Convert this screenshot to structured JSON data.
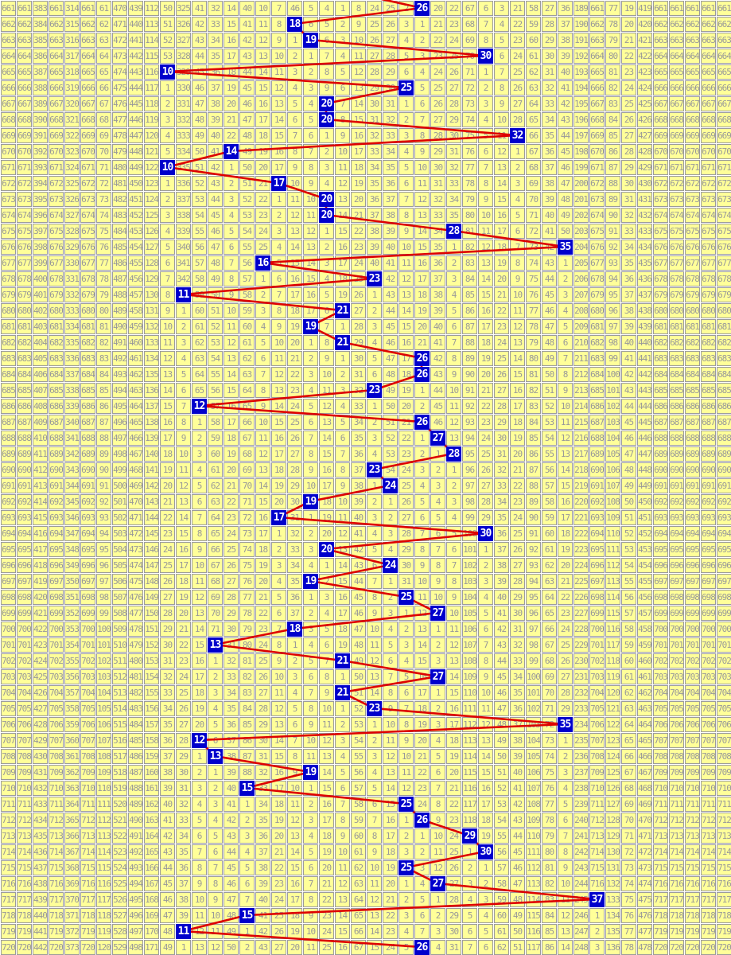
{
  "chart_data": {
    "type": "table",
    "subtype": "lottery-number-omission-trend-grid",
    "title": "",
    "columns": {
      "first_column": "issue-number",
      "number_columns_from": 1,
      "number_columns_to": 45
    },
    "issues": [
      661,
      662,
      663,
      664,
      665,
      666,
      667,
      668,
      669,
      670,
      671,
      672,
      673,
      674,
      675,
      676,
      677,
      678,
      679,
      680,
      681,
      682,
      683,
      684,
      685,
      686,
      687,
      688,
      689,
      690,
      691,
      692,
      693,
      694,
      695,
      696,
      697,
      698,
      699,
      700,
      701,
      702,
      703,
      704,
      705,
      706,
      707,
      708,
      709,
      710,
      711,
      712,
      713,
      714,
      715,
      716,
      717,
      718,
      719,
      720
    ],
    "draws": [
      26,
      18,
      19,
      30,
      10,
      25,
      20,
      20,
      32,
      14,
      10,
      17,
      20,
      20,
      28,
      35,
      16,
      23,
      11,
      21,
      19,
      21,
      26,
      26,
      23,
      12,
      26,
      27,
      28,
      23,
      24,
      19,
      17,
      30,
      20,
      24,
      19,
      25,
      27,
      18,
      13,
      21,
      27,
      21,
      23,
      35,
      12,
      13,
      19,
      15,
      25,
      26,
      29,
      30,
      25,
      27,
      37,
      15,
      11,
      26
    ],
    "initial_omissions": [
      661,
      383,
      661,
      314,
      661,
      61,
      470,
      439,
      112,
      50,
      325,
      41,
      32,
      14,
      40,
      10,
      7,
      46,
      5,
      4,
      1,
      8,
      24,
      25,
      2,
      22,
      20,
      22,
      67,
      6,
      3,
      21,
      58,
      27,
      36,
      189,
      661,
      77,
      19,
      419,
      661,
      661,
      661,
      661,
      661
    ],
    "cell_rule": "each non-drawn cell shows draws elapsed since that number last appeared; it increments by 1 per row and resets to 1 on the row after the number is drawn; the drawn cell shows the number itself highlighted",
    "red_line": {
      "connects": "drawn-number cells of consecutive rows",
      "enters_from_top_at_number": 21
    },
    "layout_hints": {
      "cell_size_px": 20,
      "rows": 60,
      "cols": 46,
      "grid": true
    },
    "colors": {
      "page_bg": "#ffffff",
      "cell_bg": "#ffff99",
      "grid_border": "#9c9c9c",
      "omission_text": "#999999",
      "drawn_bg": "#0000cc",
      "drawn_text": "#ffffff",
      "line": "#dd0000"
    }
  }
}
